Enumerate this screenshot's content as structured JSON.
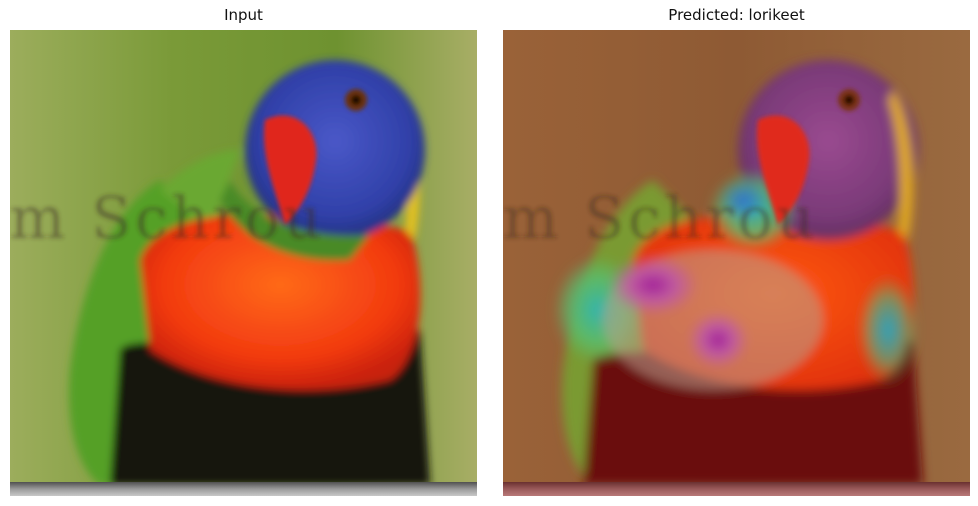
{
  "panels": [
    {
      "title": "Input",
      "kind": "original-photo",
      "subject": "lorikeet"
    },
    {
      "title": "Predicted: lorikeet",
      "kind": "heatmap-overlay",
      "subject": "lorikeet"
    }
  ],
  "watermark": "m Schrou",
  "colors": {
    "background_green": "#8aa044",
    "head_blue": "#3844b0",
    "beak_red": "#e0281c",
    "chest_orange": "#ff4a12",
    "belly_dark": "#1a1210",
    "wing_green": "#5aa22a",
    "overlay_brown": "#9a5a36",
    "overlay_hot_magenta": "#b0209a",
    "overlay_cyan": "#38b8b0"
  }
}
